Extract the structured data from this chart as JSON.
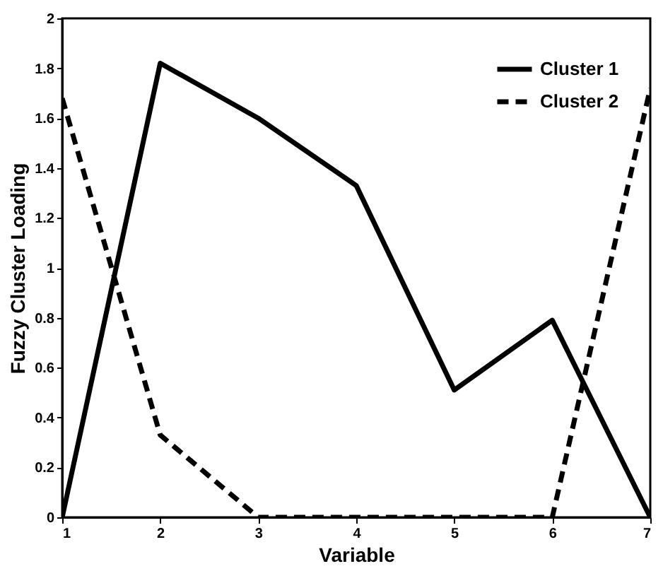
{
  "chart_data": {
    "type": "line",
    "xlabel": "Variable",
    "ylabel": "Fuzzy Cluster Loading",
    "x": [
      1,
      2,
      3,
      4,
      5,
      6,
      7
    ],
    "xlim": [
      1,
      7
    ],
    "xticks": [
      1,
      2,
      3,
      4,
      5,
      6,
      7
    ],
    "ylim": [
      0,
      2
    ],
    "yticks": [
      0,
      0.2,
      0.4,
      0.6,
      0.8,
      1,
      1.2,
      1.4,
      1.6,
      1.8,
      2
    ],
    "grid": false,
    "legend": "top right",
    "marker": "none",
    "series": [
      {
        "name": "Cluster 1",
        "color": "#000000",
        "line_style": "solid",
        "values": [
          0,
          1.82,
          1.6,
          1.33,
          0.51,
          0.79,
          0
        ]
      },
      {
        "name": "Cluster 2",
        "color": "#000000",
        "line_style": "dashed",
        "values": [
          1.68,
          0.33,
          0,
          0,
          0,
          0,
          1.72
        ]
      }
    ]
  }
}
